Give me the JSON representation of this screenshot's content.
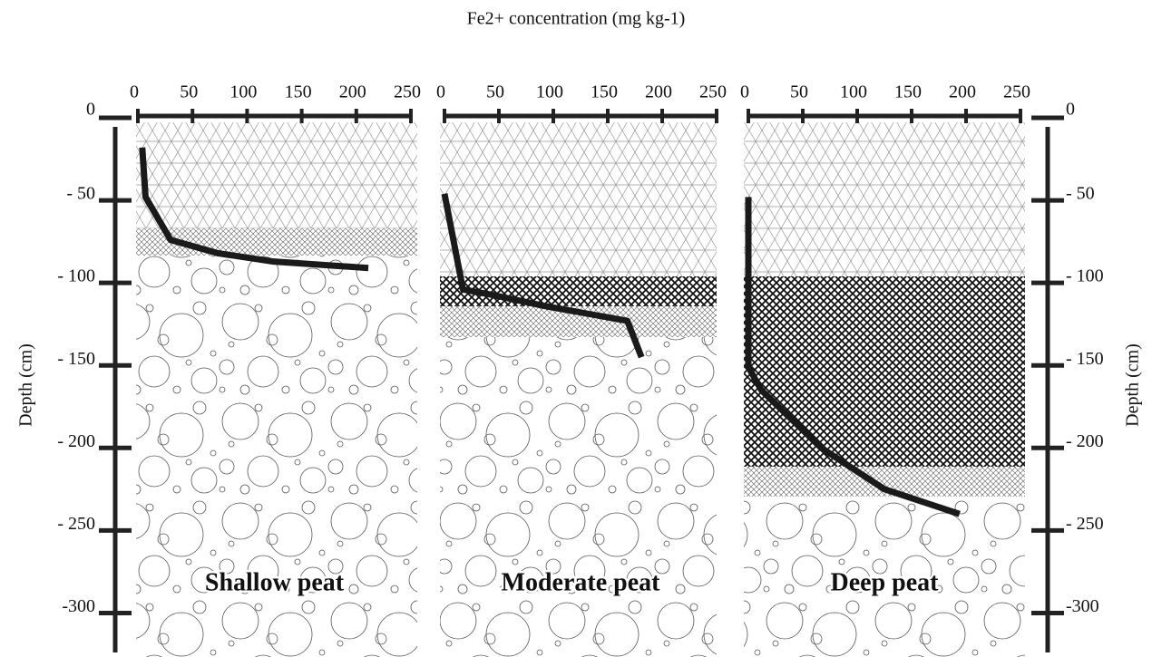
{
  "title": "Fe2+ concentration (mg kg-1)",
  "chart_data": [
    {
      "type": "line",
      "title": "Shallow peat",
      "ylabel": "Depth (cm)",
      "color": "#1a1a1a",
      "x": [
        4,
        7,
        30,
        73,
        123,
        211
      ],
      "values": [
        -18,
        -48,
        -74,
        -82,
        -87,
        -91
      ],
      "xlim": [
        0,
        250
      ],
      "xticks": [
        0,
        50,
        100,
        150,
        200,
        250
      ],
      "ylim": [
        0,
        -325
      ],
      "yticks": [
        0,
        {
          "value": -50,
          "label": "- 50"
        },
        {
          "value": -100,
          "label": "- 100"
        },
        {
          "value": -150,
          "label": "- 150"
        },
        {
          "value": -200,
          "label": "- 200"
        },
        {
          "value": -250,
          "label": "- 250"
        },
        -300
      ]
    },
    {
      "type": "line",
      "title": "Moderate peat",
      "color": "#1a1a1a",
      "x": [
        0,
        17,
        42,
        92,
        168,
        181
      ],
      "values": [
        -46,
        -104,
        -107,
        -114,
        -123,
        -145
      ],
      "xlim": [
        0,
        250
      ],
      "xticks": [
        0,
        50,
        100,
        150,
        200,
        250
      ],
      "ylim": [
        0,
        -325
      ]
    },
    {
      "type": "line",
      "title": "Deep peat",
      "ylabel": "Depth (cm)",
      "color": "#1a1a1a",
      "x": [
        0,
        0,
        12,
        67,
        125,
        194
      ],
      "values": [
        -48,
        -151,
        -165,
        -200,
        -225,
        -240
      ],
      "xlim": [
        0,
        250
      ],
      "xticks": [
        0,
        50,
        100,
        150,
        200,
        250
      ],
      "ylim": [
        0,
        -325
      ],
      "yticks": [
        0,
        {
          "value": -50,
          "label": "- 50"
        },
        {
          "value": -100,
          "label": "- 100"
        },
        {
          "value": -150,
          "label": "- 150"
        },
        {
          "value": -200,
          "label": "- 200"
        },
        {
          "value": -250,
          "label": "- 250"
        },
        -300
      ]
    }
  ]
}
